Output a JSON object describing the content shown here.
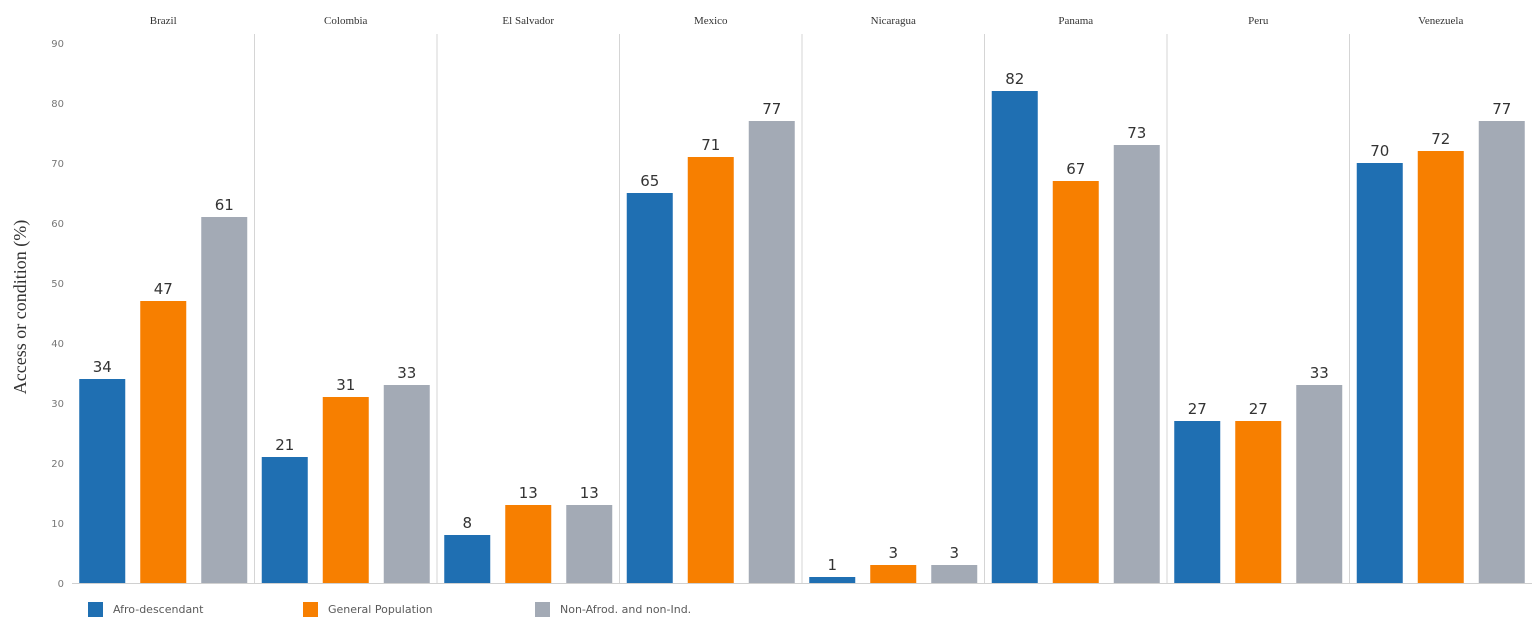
{
  "chart_data": {
    "type": "bar",
    "ylabel": "Access or condition (%)",
    "ylim": [
      0,
      90
    ],
    "yticks": [
      0,
      10,
      20,
      30,
      40,
      50,
      60,
      70,
      80,
      90
    ],
    "categories": [
      "Brazil",
      "Colombia",
      "El Salvador",
      "Mexico",
      "Nicaragua",
      "Panama",
      "Peru",
      "Venezuela"
    ],
    "series": [
      {
        "name": "Afro-descendant",
        "color": "#1f6fb2",
        "values": [
          34,
          21,
          8,
          65,
          1,
          82,
          27,
          70
        ]
      },
      {
        "name": "General Population",
        "color": "#f77f00",
        "values": [
          47,
          31,
          13,
          71,
          3,
          67,
          27,
          72
        ]
      },
      {
        "name": "Non-Afrod. and non-Ind.",
        "color": "#a3aab5",
        "values": [
          61,
          33,
          13,
          77,
          3,
          73,
          33,
          77
        ]
      }
    ],
    "data_labels": true,
    "grid": false,
    "legend_position": "bottom-left"
  }
}
